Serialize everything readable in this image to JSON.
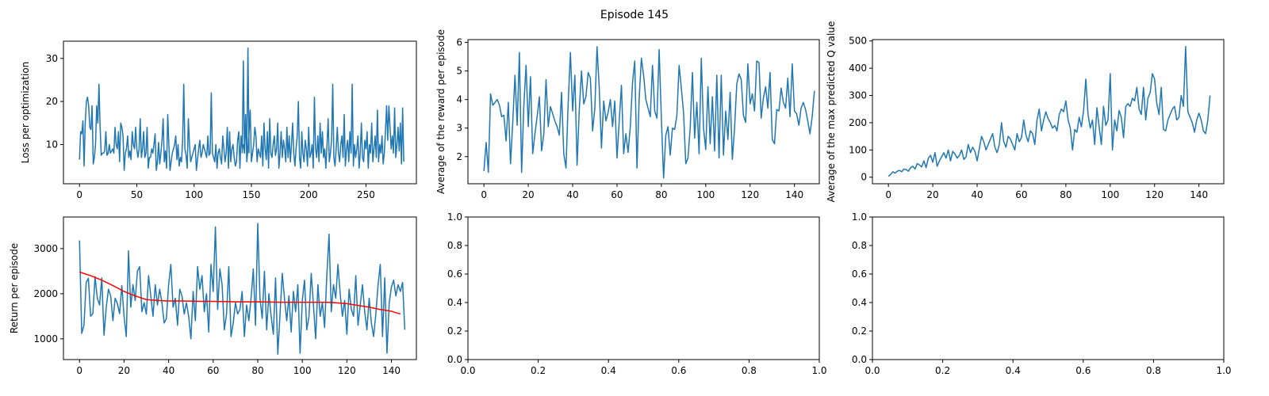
{
  "figure": {
    "title": "Episode 145",
    "colors": {
      "series": "#1f77b4",
      "moving_average": "#ff0000",
      "axes": "#000000",
      "background": "#ffffff"
    }
  },
  "chart_data": [
    {
      "id": "loss",
      "type": "line",
      "title": "",
      "xlabel": "",
      "ylabel": "Loss per optimization",
      "xlim": [
        -14,
        294
      ],
      "ylim": [
        0.9,
        34
      ],
      "xticks": [
        0,
        50,
        100,
        150,
        200,
        250
      ],
      "yticks": [
        10,
        20,
        30
      ],
      "grid": false,
      "series": [
        {
          "color": "#1f77b4",
          "values": [
            6.5,
            13,
            12.5,
            15.5,
            5,
            15,
            20,
            21,
            19,
            14,
            13.5,
            19,
            5.5,
            7,
            10,
            19,
            15,
            24,
            14,
            7.5,
            8,
            8,
            8.5,
            13,
            7.5,
            8,
            10,
            8,
            8.5,
            9,
            8,
            14,
            10,
            9,
            13,
            6,
            15,
            14,
            12,
            4,
            8,
            9,
            12,
            7,
            8.5,
            6.5,
            13,
            10,
            9,
            14,
            9,
            7,
            9,
            16,
            7,
            9,
            13,
            7,
            8,
            14,
            4.5,
            7,
            7,
            9,
            8,
            10,
            12.5,
            4,
            6,
            10.5,
            5.5,
            8,
            11,
            16,
            6,
            8.5,
            4.5,
            17,
            10,
            4,
            6,
            8,
            9,
            10,
            12,
            6.5,
            10,
            5,
            7,
            6,
            11,
            24,
            9,
            7.5,
            4.5,
            16,
            10,
            6,
            7,
            8,
            9,
            10,
            4,
            6.5,
            9,
            11,
            7,
            8,
            10,
            9,
            8,
            7,
            12,
            7.5,
            8,
            22,
            8,
            7,
            6,
            10,
            4.5,
            8,
            9,
            7,
            5.5,
            12,
            9,
            6,
            8,
            14,
            4.5,
            13,
            6,
            9,
            10,
            7,
            5,
            6,
            11,
            13,
            4.5,
            12,
            9,
            10,
            8,
            17,
            6,
            9,
            13,
            18,
            6,
            8,
            10,
            14,
            12,
            6,
            9,
            8,
            7,
            12,
            5,
            15,
            9,
            6.5,
            13,
            4.5,
            16,
            8,
            7,
            10,
            12,
            7.5,
            9,
            15,
            4.5,
            8,
            13,
            7,
            11,
            9,
            6,
            14,
            7,
            12,
            6,
            10,
            15,
            8,
            5,
            9,
            12,
            20,
            7,
            4.5,
            13,
            8,
            6,
            11,
            9,
            5,
            14,
            7,
            8,
            10,
            4.5,
            21,
            9,
            7,
            12,
            6,
            15,
            8,
            13,
            7,
            9,
            4.5,
            10,
            16,
            6,
            8,
            11,
            24,
            7,
            5,
            9,
            14,
            8,
            6,
            10,
            12,
            7,
            17,
            5,
            9,
            11,
            6,
            13,
            8,
            24,
            5,
            10,
            7,
            9,
            12,
            4.5,
            8,
            15,
            7,
            6,
            11,
            9,
            13,
            4.5,
            10,
            8,
            15,
            6,
            9,
            12,
            7,
            18,
            6,
            10,
            8,
            12,
            5.5,
            8,
            13,
            19,
            11,
            19,
            14,
            9,
            12,
            8,
            18.5,
            7,
            10,
            14,
            8.5,
            15,
            5.5,
            18.5,
            6
          ],
          "peaks": [
            {
              "x": 143,
              "y": 29.5
            },
            {
              "x": 147,
              "y": 32.5
            }
          ]
        }
      ]
    },
    {
      "id": "avg_reward",
      "type": "line",
      "title": "",
      "xlabel": "",
      "ylabel": "Average of the reward per episode",
      "xlim": [
        -7.2,
        151.2
      ],
      "ylim": [
        1.05,
        6.1
      ],
      "xticks": [
        0,
        20,
        40,
        60,
        80,
        100,
        120,
        140
      ],
      "yticks": [
        2,
        3,
        4,
        5,
        6
      ],
      "grid": false,
      "series": [
        {
          "color": "#1f77b4",
          "values": [
            1.5,
            2.5,
            1.45,
            4.2,
            3.8,
            3.9,
            4.0,
            3.8,
            3.4,
            3.45,
            2.55,
            3.9,
            1.75,
            3.2,
            4.85,
            3.1,
            5.65,
            1.45,
            3.8,
            5.2,
            3.05,
            4.8,
            2.1,
            2.8,
            3.4,
            4.1,
            2.2,
            2.8,
            4.7,
            3.05,
            3.75,
            3.5,
            3.25,
            3.05,
            2.75,
            4.25,
            2.1,
            1.6,
            3.9,
            5.65,
            3.6,
            4.85,
            1.7,
            3.65,
            5.0,
            3.85,
            4.1,
            4.95,
            4.75,
            2.9,
            3.7,
            5.85,
            4.4,
            2.3,
            3.95,
            3.25,
            3.55,
            4.0,
            3.05,
            3.95,
            1.95,
            3.25,
            4.5,
            2.1,
            2.8,
            2.15,
            3.05,
            4.6,
            5.35,
            1.6,
            4.05,
            5.45,
            4.85,
            4.0,
            3.7,
            3.4,
            5.2,
            3.6,
            3.35,
            5.75,
            3.35,
            1.25,
            2.75,
            3.05,
            2.05,
            3.0,
            2.95,
            3.45,
            5.2,
            4.4,
            3.55,
            1.75,
            1.95,
            3.0,
            4.95,
            2.65,
            3.9,
            2.1,
            5.45,
            3.0,
            2.25,
            4.45,
            2.45,
            4.1,
            2.2,
            4.85,
            1.95,
            4.85,
            2.05,
            3.6,
            2.6,
            4.25,
            1.9,
            3.0,
            4.55,
            4.9,
            4.7,
            3.45,
            3.2,
            5.25,
            3.85,
            4.2,
            3.6,
            5.35,
            5.3,
            3.35,
            4.05,
            4.45,
            3.7,
            4.95,
            2.6,
            2.45,
            3.65,
            3.6,
            4.4,
            3.9,
            3.7,
            4.75,
            3.4,
            5.25,
            3.6,
            3.5,
            3.1,
            3.7,
            3.9,
            3.65,
            3.25,
            2.8,
            3.4,
            4.3
          ]
        }
      ]
    },
    {
      "id": "max_q",
      "type": "line",
      "title": "",
      "xlabel": "",
      "ylabel": "Average of the max predicted Q value",
      "xlim": [
        -7.2,
        151.2
      ],
      "ylim": [
        -24,
        505
      ],
      "xticks": [
        0,
        20,
        40,
        60,
        80,
        100,
        120,
        140
      ],
      "yticks": [
        0,
        100,
        200,
        300,
        400,
        500
      ],
      "grid": false,
      "series": [
        {
          "color": "#1f77b4",
          "values": [
            3,
            10,
            20,
            15,
            22,
            25,
            20,
            30,
            28,
            22,
            35,
            40,
            30,
            50,
            45,
            38,
            60,
            35,
            70,
            80,
            55,
            90,
            40,
            60,
            75,
            90,
            70,
            100,
            60,
            95,
            85,
            70,
            80,
            100,
            65,
            75,
            120,
            90,
            110,
            95,
            60,
            105,
            150,
            130,
            100,
            120,
            140,
            160,
            110,
            90,
            120,
            200,
            130,
            110,
            150,
            140,
            120,
            100,
            160,
            130,
            145,
            210,
            155,
            130,
            170,
            160,
            120,
            210,
            250,
            170,
            210,
            240,
            215,
            200,
            180,
            190,
            170,
            230,
            250,
            240,
            280,
            210,
            180,
            100,
            175,
            165,
            220,
            185,
            245,
            360,
            230,
            180,
            210,
            120,
            255,
            185,
            120,
            260,
            190,
            210,
            380,
            100,
            210,
            170,
            245,
            220,
            145,
            260,
            270,
            260,
            290,
            280,
            330,
            250,
            230,
            330,
            210,
            290,
            310,
            380,
            360,
            270,
            230,
            330,
            175,
            170,
            210,
            230,
            250,
            260,
            210,
            220,
            300,
            260,
            480,
            240,
            220,
            200,
            165,
            210,
            235,
            210,
            170,
            160,
            210,
            300
          ]
        }
      ]
    },
    {
      "id": "return",
      "type": "line",
      "title": "",
      "xlabel": "",
      "ylabel": "Return per episode",
      "xlim": [
        -7.2,
        151.2
      ],
      "ylim": [
        540,
        3700
      ],
      "xticks": [
        0,
        20,
        40,
        60,
        80,
        100,
        120,
        140
      ],
      "yticks": [
        1000,
        2000,
        3000
      ],
      "grid": false,
      "series": [
        {
          "name": "",
          "color": "#1f77b4",
          "values": [
            3180,
            1120,
            1300,
            2250,
            2340,
            1500,
            1560,
            2380,
            1900,
            1750,
            2350,
            1080,
            1700,
            2100,
            1950,
            1400,
            1900,
            1780,
            1560,
            2180,
            1500,
            1050,
            2950,
            1700,
            2200,
            1850,
            2500,
            2600,
            1600,
            1800,
            1550,
            2400,
            1950,
            1500,
            2200,
            1750,
            2100,
            1800,
            1350,
            1450,
            2200,
            2650,
            1700,
            1900,
            1300,
            2100,
            1950,
            1550,
            1800,
            1500,
            1000,
            2050,
            1400,
            2600,
            2100,
            2400,
            1600,
            2000,
            1150,
            2650,
            2050,
            3480,
            1650,
            2550,
            2200,
            1200,
            1550,
            2600,
            1050,
            1350,
            1800,
            1550,
            1650,
            2050,
            1050,
            1750,
            1400,
            1900,
            2550,
            1300,
            3560,
            1900,
            1450,
            2500,
            1200,
            2000,
            1500,
            1100,
            2350,
            660,
            1550,
            2450,
            1900,
            1400,
            1950,
            1150,
            2050,
            1600,
            2200,
            680,
            1850,
            2300,
            1200,
            1500,
            2450,
            1750,
            1000,
            2200,
            1500,
            1800,
            1250,
            2400,
            3320,
            1600,
            2200,
            1900,
            2650,
            2000,
            1500,
            1850,
            1100,
            2100,
            1650,
            1500,
            2400,
            1300,
            1750,
            2200,
            1600,
            1200,
            1900,
            1350,
            1050,
            1550,
            2200,
            2650,
            1050,
            2350,
            680,
            1800,
            2150,
            2300,
            1950,
            2200,
            2050,
            2250,
            1200
          ]
        },
        {
          "name": "",
          "color": "#ff0000",
          "x": [
            0,
            5,
            10,
            15,
            20,
            25,
            30,
            35,
            40,
            45,
            50,
            55,
            60,
            65,
            70,
            75,
            80,
            85,
            90,
            95,
            100,
            105,
            110,
            115,
            120,
            125,
            130,
            135,
            140,
            144
          ],
          "values": [
            2480,
            2400,
            2300,
            2180,
            2050,
            1950,
            1870,
            1850,
            1840,
            1840,
            1835,
            1830,
            1830,
            1825,
            1820,
            1820,
            1820,
            1815,
            1810,
            1810,
            1810,
            1810,
            1810,
            1800,
            1780,
            1740,
            1700,
            1650,
            1610,
            1550
          ]
        }
      ]
    },
    {
      "id": "empty1",
      "type": "line",
      "title": "",
      "xlabel": "",
      "ylabel": "",
      "xlim": [
        0,
        1
      ],
      "ylim": [
        0,
        1
      ],
      "xticks": [
        0,
        0.2,
        0.4,
        0.6,
        0.8,
        1.0
      ],
      "yticks": [
        0,
        0.2,
        0.4,
        0.6,
        0.8,
        1.0
      ],
      "xticklabels": [
        "0.0",
        "0.2",
        "0.4",
        "0.6",
        "0.8",
        "1.0"
      ],
      "yticklabels": [
        "0.0",
        "0.2",
        "0.4",
        "0.6",
        "0.8",
        "1.0"
      ],
      "grid": false,
      "series": []
    },
    {
      "id": "empty2",
      "type": "line",
      "title": "",
      "xlabel": "",
      "ylabel": "",
      "xlim": [
        0,
        1
      ],
      "ylim": [
        0,
        1
      ],
      "xticks": [
        0,
        0.2,
        0.4,
        0.6,
        0.8,
        1.0
      ],
      "yticks": [
        0,
        0.2,
        0.4,
        0.6,
        0.8,
        1.0
      ],
      "xticklabels": [
        "0.0",
        "0.2",
        "0.4",
        "0.6",
        "0.8",
        "1.0"
      ],
      "yticklabels": [
        "0.0",
        "0.2",
        "0.4",
        "0.6",
        "0.8",
        "1.0"
      ],
      "grid": false,
      "series": []
    }
  ]
}
